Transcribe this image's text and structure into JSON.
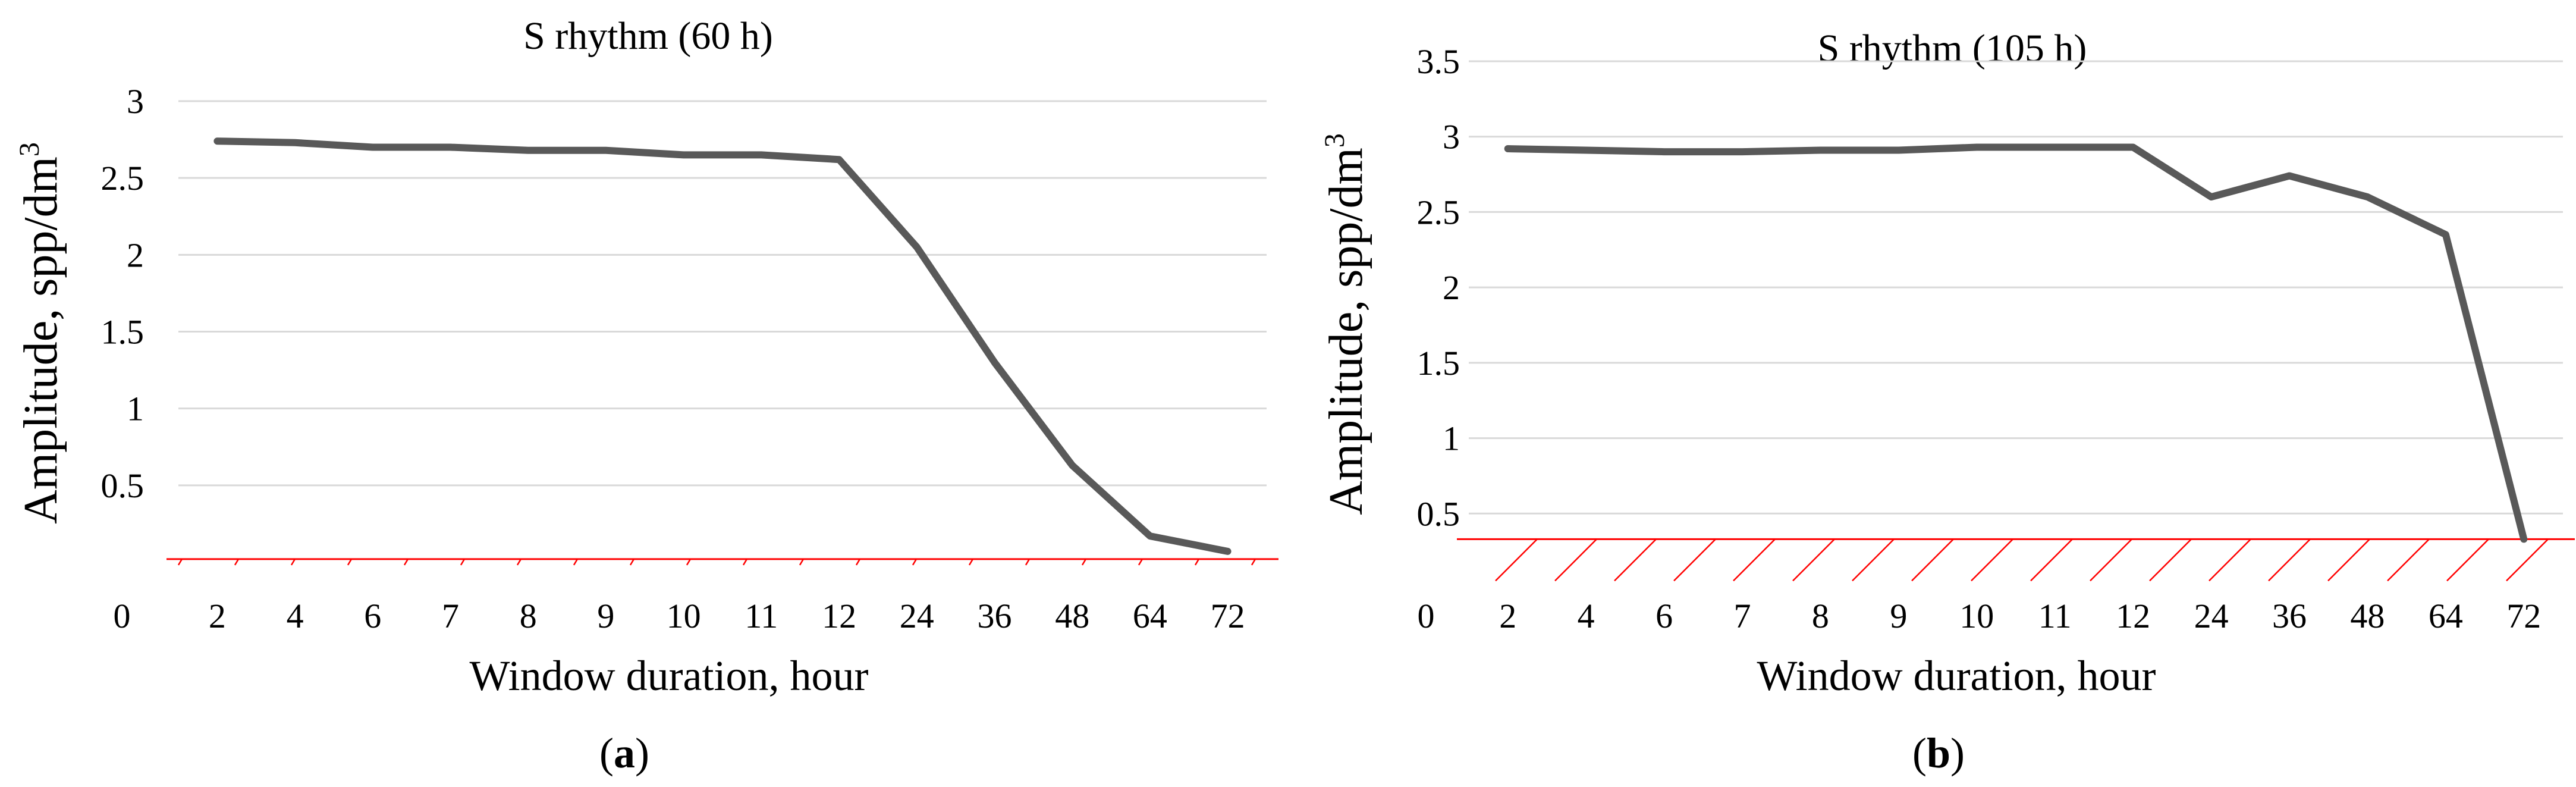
{
  "chart_data": [
    {
      "type": "line",
      "panel_label": "a",
      "title": "S rhythm (60 h)",
      "xlabel": "Window duration, hour",
      "ylabel": "Amplitude, spp/dm",
      "ylabel_sup": "3",
      "origin_label": "0",
      "categories": [
        "2",
        "4",
        "6",
        "7",
        "8",
        "9",
        "10",
        "11",
        "12",
        "24",
        "36",
        "48",
        "64",
        "72"
      ],
      "values": [
        2.74,
        2.73,
        2.7,
        2.7,
        2.68,
        2.68,
        2.65,
        2.65,
        2.62,
        2.05,
        1.3,
        0.63,
        0.17,
        0.07
      ],
      "yticks": [
        "0.5",
        "1",
        "1.5",
        "2",
        "2.5",
        "3"
      ],
      "ylim": [
        0,
        3
      ],
      "threshold": 0.02,
      "grid": true,
      "line_color": "#595959",
      "threshold_color": "#ff0000",
      "grid_color": "#d9d9d9"
    },
    {
      "type": "line",
      "panel_label": "b",
      "title": "S rhythm (105 h)",
      "xlabel": "Window duration, hour",
      "ylabel": "Amplitude, spp/dm",
      "ylabel_sup": "3",
      "origin_label": "0",
      "categories": [
        "2",
        "4",
        "6",
        "7",
        "8",
        "9",
        "10",
        "11",
        "12",
        "24",
        "36",
        "48",
        "64",
        "72"
      ],
      "values": [
        2.92,
        2.91,
        2.9,
        2.9,
        2.91,
        2.91,
        2.93,
        2.93,
        2.93,
        2.6,
        2.74,
        2.6,
        2.35,
        0.33
      ],
      "yticks": [
        "0.5",
        "1",
        "1.5",
        "2",
        "2.5",
        "3",
        "3.5"
      ],
      "ylim": [
        0,
        3.5
      ],
      "threshold": 0.33,
      "grid": true,
      "line_color": "#595959",
      "threshold_color": "#ff0000",
      "grid_color": "#d9d9d9"
    }
  ]
}
